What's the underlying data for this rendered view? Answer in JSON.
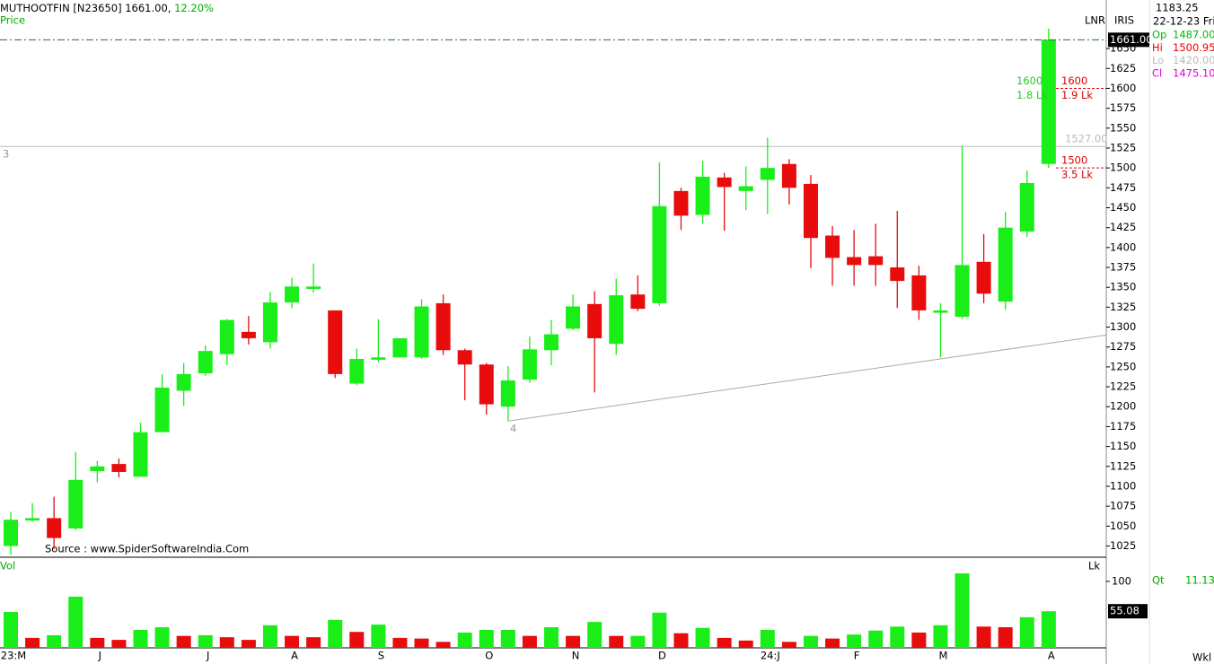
{
  "chart_data": {
    "type": "candlestick",
    "header": {
      "symbol": "MUTHOOTFIN [N23650]",
      "price": "1661.00,",
      "change": "12.20%"
    },
    "price_label": "Price",
    "volume_label": "Vol",
    "volume_unit": "Lk",
    "categories": [
      "23:M",
      null,
      null,
      null,
      "J",
      null,
      null,
      null,
      null,
      "J",
      null,
      null,
      null,
      "A",
      null,
      null,
      null,
      "S",
      null,
      null,
      null,
      null,
      "O",
      null,
      null,
      null,
      "N",
      null,
      null,
      null,
      "D",
      null,
      null,
      null,
      null,
      "24:J",
      null,
      null,
      null,
      "F",
      null,
      null,
      null,
      "M",
      null,
      null,
      null,
      null,
      "A"
    ],
    "open": [
      1025,
      1057,
      1060,
      1047,
      1119,
      1128,
      1112,
      1168,
      1220,
      1242,
      1266,
      1294,
      1281,
      1331,
      1348,
      1321,
      1229,
      1259,
      1262,
      1262,
      1330,
      1271,
      1253,
      1200,
      1234,
      1271,
      1298,
      1329,
      1279,
      1341,
      1330,
      1471,
      1441,
      1488,
      1471,
      1485,
      1505,
      1480,
      1415,
      1388,
      1389,
      1375,
      1365,
      1318,
      1313,
      1382,
      1332,
      1420,
      1505
    ],
    "high": [
      1068,
      1079,
      1087,
      1143,
      1132,
      1135,
      1180,
      1241,
      1255,
      1277,
      1310,
      1314,
      1344,
      1362,
      1380,
      1321,
      1273,
      1310,
      1286,
      1335,
      1341,
      1273,
      1255,
      1251,
      1288,
      1309,
      1341,
      1345,
      1361,
      1365,
      1507,
      1475,
      1509,
      1494,
      1502,
      1538,
      1511,
      1491,
      1427,
      1422,
      1430,
      1446,
      1377,
      1330,
      1528,
      1417,
      1445,
      1497,
      1675
    ],
    "low": [
      1014,
      1056,
      1021,
      1045,
      1105,
      1111,
      1112,
      1168,
      1201,
      1239,
      1252,
      1278,
      1273,
      1324,
      1343,
      1236,
      1227,
      1256,
      1262,
      1260,
      1265,
      1208,
      1190,
      1182,
      1230,
      1252,
      1296,
      1218,
      1265,
      1320,
      1327,
      1422,
      1430,
      1421,
      1447,
      1442,
      1454,
      1374,
      1352,
      1352,
      1352,
      1324,
      1309,
      1262,
      1310,
      1330,
      1322,
      1413,
      1500
    ],
    "close": [
      1058,
      1060,
      1035,
      1108,
      1125,
      1118,
      1168,
      1224,
      1241,
      1270,
      1309,
      1286,
      1331,
      1351,
      1351,
      1241,
      1260,
      1262,
      1286,
      1326,
      1271,
      1253,
      1203,
      1233,
      1272,
      1291,
      1326,
      1286,
      1340,
      1323,
      1452,
      1440,
      1489,
      1476,
      1477,
      1500,
      1475,
      1412,
      1387,
      1378,
      1378,
      1358,
      1321,
      1321,
      1378,
      1342,
      1425,
      1481,
      1661
    ],
    "volume": [
      54,
      15,
      19,
      77,
      15,
      12,
      27,
      31,
      18,
      19,
      16,
      12,
      34,
      18,
      16,
      42,
      24,
      35,
      15,
      14,
      9,
      23,
      27,
      27,
      18,
      31,
      18,
      39,
      18,
      18,
      53,
      22,
      30,
      15,
      11,
      27,
      9,
      18,
      14,
      20,
      26,
      32,
      23,
      34,
      112,
      32,
      31,
      46,
      55.08
    ],
    "up_color": "#19ee19",
    "down_color": "#e80c0c",
    "ylim": [
      1012,
      1711
    ],
    "yticks": [
      1025,
      1050,
      1075,
      1100,
      1125,
      1150,
      1175,
      1200,
      1225,
      1250,
      1275,
      1300,
      1325,
      1350,
      1375,
      1400,
      1425,
      1450,
      1475,
      1500,
      1525,
      1550,
      1575,
      1600,
      1625,
      1650
    ],
    "vol_ylim": [
      0,
      135
    ],
    "vol_yticks": [
      100
    ],
    "last_price": {
      "value": 1661,
      "label": "1661.00"
    },
    "level_line": {
      "value": 1527,
      "label": "1527.00"
    },
    "bid_marker": {
      "value": 1600,
      "volume": "1.8 Lk"
    },
    "price_levels": [
      {
        "value": 1600,
        "volume": "1.9 Lk"
      },
      {
        "value": 1500,
        "volume": "3.5 Lk"
      }
    ],
    "trendline": {
      "x": [
        23,
        50.66
      ],
      "y": [
        1182,
        1290
      ]
    }
  },
  "ui": {
    "scale_mode": "LNR",
    "study": "IRIS",
    "period": "Wkl",
    "source": "Source : www.SpiderSoftwareIndia.Com",
    "wave_labels": [
      "3",
      "4"
    ],
    "cursor_price": "1183.25",
    "cursor_date": "22-12-23 Fri",
    "ohlc": [
      {
        "label": "Op",
        "value": "1487.00"
      },
      {
        "label": "Hi",
        "value": "1500.95"
      },
      {
        "label": "Lo",
        "value": "1420.00"
      },
      {
        "label": "Cl",
        "value": "1475.10"
      }
    ],
    "qty": {
      "label": "Qt",
      "value": "11.13"
    }
  }
}
